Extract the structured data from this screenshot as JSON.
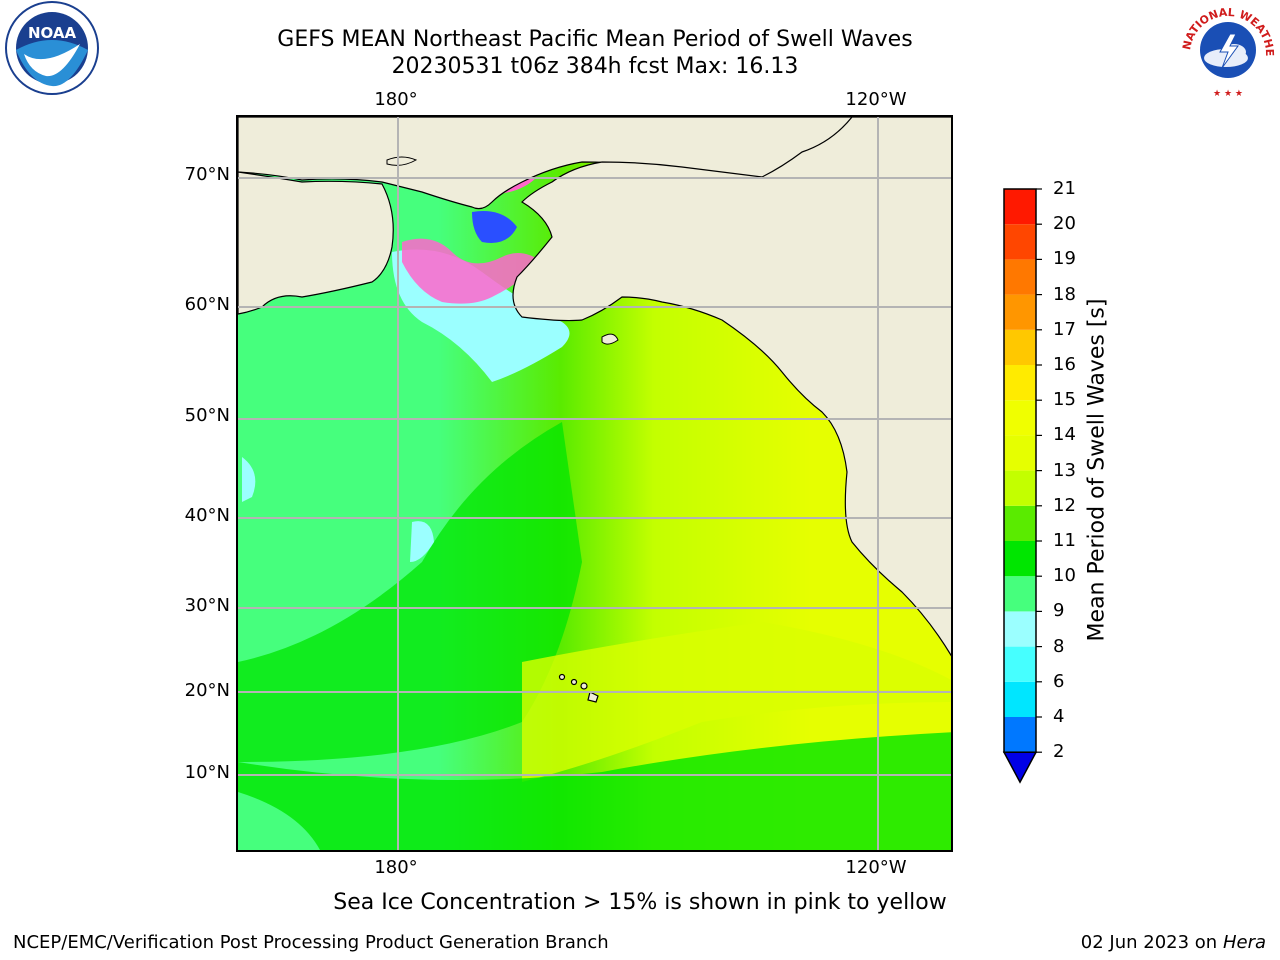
{
  "header": {
    "title_line1": "GEFS MEAN Northeast Pacific Mean Period of Swell Waves",
    "title_line2": "20230531 t06z 384h fcst   Max: 16.13"
  },
  "map": {
    "latitude_labels": [
      "70°N",
      "60°N",
      "50°N",
      "40°N",
      "30°N",
      "20°N",
      "10°N"
    ],
    "longitude_labels_top": [
      "180°",
      "120°W"
    ],
    "longitude_labels_bottom": [
      "180°",
      "120°W"
    ],
    "land_color": "#efedda",
    "grid_color": "#b4b4b4"
  },
  "colorbar": {
    "label": "Mean Period of Swell Waves [s]",
    "ticks": [
      "2",
      "4",
      "6",
      "8",
      "9",
      "10",
      "11",
      "12",
      "13",
      "14",
      "15",
      "16",
      "17",
      "18",
      "19",
      "20",
      "21"
    ],
    "colors": [
      "#0000e6",
      "#0078ff",
      "#00e6ff",
      "#46ffff",
      "#9bffff",
      "#46ff7d",
      "#00e600",
      "#5aeb00",
      "#c3ff00",
      "#e6ff00",
      "#f0ff00",
      "#ffeb00",
      "#ffc800",
      "#ff9600",
      "#ff7800",
      "#ff4600",
      "#ff1900",
      "#ff0000"
    ]
  },
  "footnote": "Sea Ice Concentration > 15% is shown in pink to yellow",
  "credits": {
    "left": "NCEP/EMC/Verification Post Processing Product Generation Branch",
    "right_date": "02 Jun 2023 on",
    "right_host": "Hera"
  },
  "logos": {
    "left": "NOAA",
    "right": "NATIONAL WEATHER SERVICE"
  }
}
